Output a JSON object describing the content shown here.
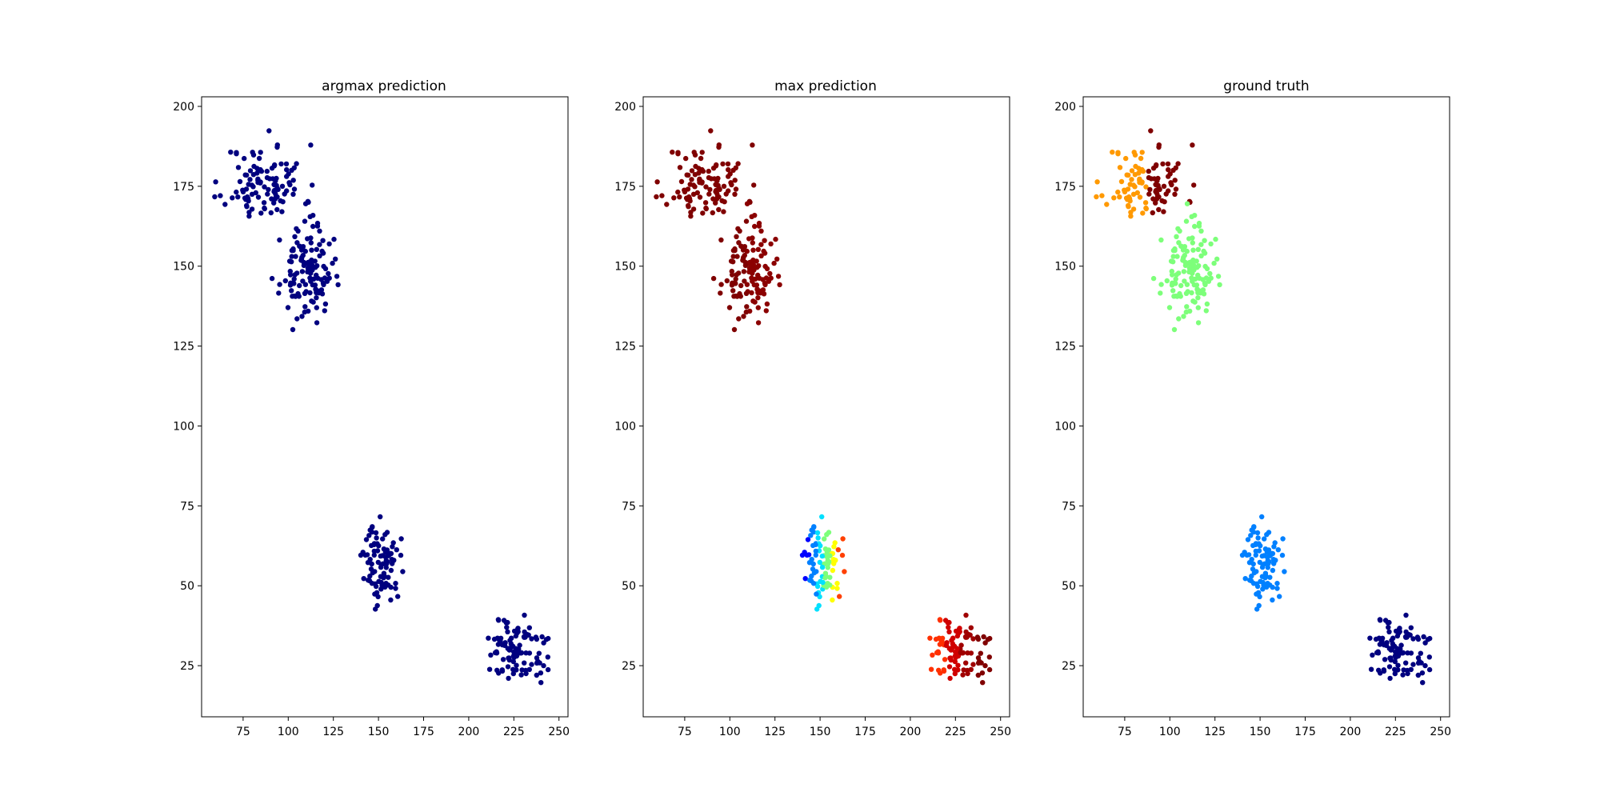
{
  "figure": {
    "background": "#ffffff"
  },
  "chart_data": [
    {
      "type": "scatter",
      "title": "argmax prediction",
      "xlabel": "",
      "ylabel": "",
      "xlim": [
        52,
        255
      ],
      "ylim": [
        9,
        203
      ],
      "xticks": [
        "75",
        "100",
        "125",
        "150",
        "175",
        "200",
        "225",
        "250"
      ],
      "yticks": [
        "25",
        "50",
        "75",
        "100",
        "125",
        "150",
        "175",
        "200"
      ],
      "grid": false,
      "color_mode": "uniform",
      "point_color": "#00007f",
      "clusters": [
        {
          "name": "upper-left",
          "cx": 87,
          "cy": 176,
          "sx": 11,
          "sy": 6,
          "n": 110,
          "seed": 11
        },
        {
          "name": "mid-upper",
          "cx": 110,
          "cy": 148,
          "sx": 7,
          "sy": 7,
          "n": 130,
          "seed": 23
        },
        {
          "name": "middle",
          "cx": 152,
          "cy": 57,
          "sx": 5,
          "sy": 6,
          "n": 90,
          "seed": 37
        },
        {
          "name": "lower-right",
          "cx": 226,
          "cy": 30,
          "sx": 9,
          "sy": 5,
          "n": 100,
          "seed": 51
        }
      ]
    },
    {
      "type": "scatter",
      "title": "max prediction",
      "xlabel": "",
      "ylabel": "",
      "xlim": [
        52,
        255
      ],
      "ylim": [
        9,
        203
      ],
      "xticks": [
        "75",
        "100",
        "125",
        "150",
        "175",
        "200",
        "225",
        "250"
      ],
      "yticks": [
        "25",
        "50",
        "75",
        "100",
        "125",
        "150",
        "175",
        "200"
      ],
      "grid": false,
      "color_mode": "gradient",
      "clusters": [
        {
          "name": "upper-left",
          "cx": 87,
          "cy": 176,
          "sx": 11,
          "sy": 6,
          "n": 110,
          "seed": 11,
          "colors": [
            "#7f0000",
            "#800000"
          ]
        },
        {
          "name": "mid-upper",
          "cx": 110,
          "cy": 148,
          "sx": 7,
          "sy": 7,
          "n": 130,
          "seed": 23,
          "colors": [
            "#7f0000",
            "#8b0000"
          ]
        },
        {
          "name": "middle",
          "cx": 152,
          "cy": 57,
          "sx": 5,
          "sy": 6,
          "n": 90,
          "seed": 37,
          "colors": [
            "#0000ff",
            "#0080ff",
            "#00e0ff",
            "#7dff7a",
            "#ffff00",
            "#ff4000"
          ]
        },
        {
          "name": "lower-right",
          "cx": 226,
          "cy": 30,
          "sx": 9,
          "sy": 5,
          "n": 100,
          "seed": 51,
          "colors": [
            "#ff3000",
            "#d00000",
            "#a00000",
            "#800000"
          ]
        }
      ]
    },
    {
      "type": "scatter",
      "title": "ground truth",
      "xlabel": "",
      "ylabel": "",
      "xlim": [
        52,
        255
      ],
      "ylim": [
        9,
        203
      ],
      "xticks": [
        "75",
        "100",
        "125",
        "150",
        "175",
        "200",
        "225",
        "250"
      ],
      "yticks": [
        "25",
        "50",
        "75",
        "100",
        "125",
        "150",
        "175",
        "200"
      ],
      "grid": false,
      "color_mode": "split",
      "clusters": [
        {
          "name": "upper-left",
          "cx": 87,
          "cy": 176,
          "sx": 11,
          "sy": 6,
          "n": 110,
          "seed": 11,
          "colors": [
            "#ff9900",
            "#7f0000"
          ],
          "split_x": 88
        },
        {
          "name": "mid-upper",
          "cx": 110,
          "cy": 148,
          "sx": 7,
          "sy": 7,
          "n": 130,
          "seed": 23,
          "colors": [
            "#7dff7a"
          ]
        },
        {
          "name": "middle",
          "cx": 152,
          "cy": 57,
          "sx": 5,
          "sy": 6,
          "n": 90,
          "seed": 37,
          "colors": [
            "#0080ff"
          ]
        },
        {
          "name": "lower-right",
          "cx": 226,
          "cy": 30,
          "sx": 9,
          "sy": 5,
          "n": 100,
          "seed": 51,
          "colors": [
            "#00007f"
          ]
        }
      ]
    }
  ]
}
